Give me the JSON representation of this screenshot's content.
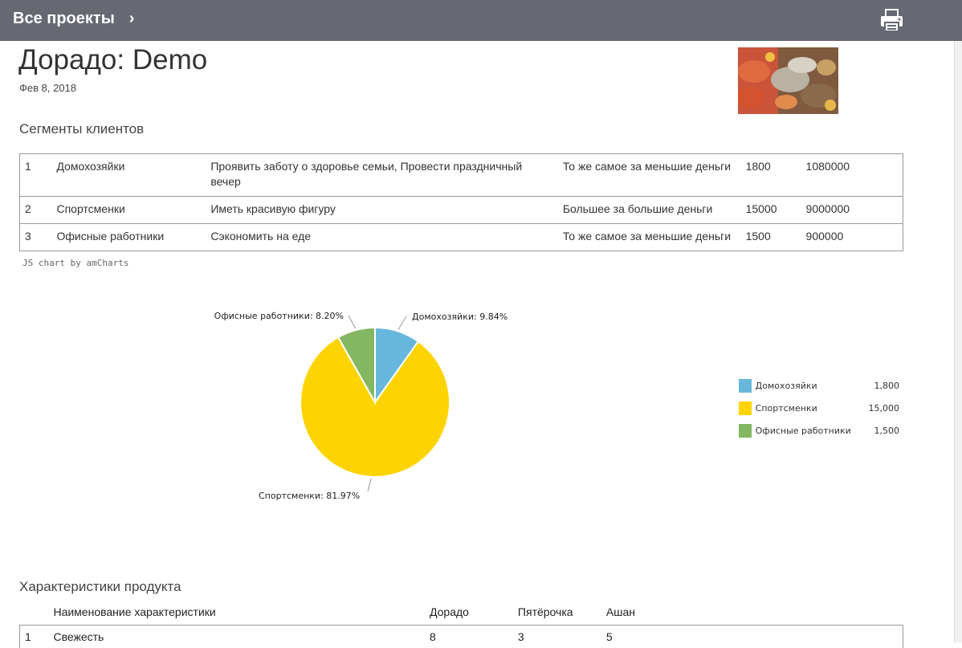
{
  "header": {
    "breadcrumb_label": "Все проекты",
    "chevron": "›",
    "print_icon": "printer-icon"
  },
  "project": {
    "title": "Дорадо: Demo",
    "date": "Фев 8, 2018"
  },
  "segments": {
    "heading": "Сегменты клиентов",
    "rows": [
      {
        "num": "1",
        "name": "Домохозяйки",
        "need": "Проявить заботу о здоровье семьи, Провести праздничный вечер",
        "value": "То же самое за меньшие деньги",
        "count": "1800",
        "sum": "1080000"
      },
      {
        "num": "2",
        "name": "Спортсменки",
        "need": "Иметь красивую фигуру",
        "value": "Большее за большие деньги",
        "count": "15000",
        "sum": "9000000"
      },
      {
        "num": "3",
        "name": "Офисные работники",
        "need": "Сэкономить на еде",
        "value": "То же самое за меньшие деньги",
        "count": "1500",
        "sum": "900000"
      }
    ]
  },
  "chart_credit": "JS chart by amCharts",
  "chart_data": {
    "type": "pie",
    "categories": [
      "Домохозяйки",
      "Спортсменки",
      "Офисные работники"
    ],
    "values": [
      1800,
      15000,
      1500
    ],
    "slice_labels": [
      "Домохозяйки: 9.84%",
      "Спортсменки: 81.97%",
      "Офисные работники: 8.20%"
    ],
    "legend_values": [
      "1,800",
      "15,000",
      "1,500"
    ],
    "colors": [
      "#67b7dc",
      "#fdd400",
      "#84b761"
    ],
    "legend_position": "right"
  },
  "characteristics": {
    "heading": "Характеристики продукта",
    "columns": [
      "Наименование характеристики",
      "Дорадо",
      "Пятёрочка",
      "Ашан"
    ],
    "rows": [
      {
        "num": "1",
        "name": "Свежесть",
        "values": [
          "8",
          "3",
          "5"
        ]
      }
    ]
  }
}
